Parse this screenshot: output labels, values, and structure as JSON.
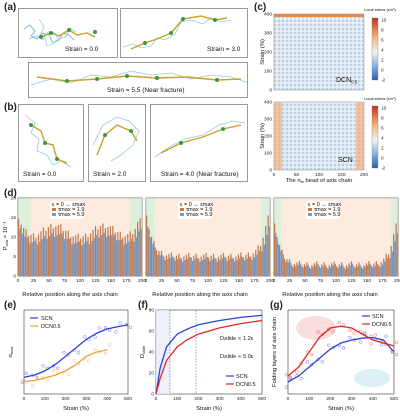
{
  "panel_labels": {
    "a": "(a)",
    "b": "(b)",
    "c": "(c)",
    "d": "(d)",
    "e": "(e)",
    "f": "(f)",
    "g": "(g)"
  },
  "panel_a": {
    "strains": [
      "Strain = 0.0",
      "Strain = 3.0",
      "Strain = 5.5 (Near fracture)"
    ]
  },
  "panel_b": {
    "strains": [
      "Strain = 0.0",
      "Strain = 2.0",
      "Strain = 4.0 (Near fracture)"
    ]
  },
  "panel_c": {
    "colorbar_title": "Local stress (ε/σ³)",
    "colorbar_ticks": [
      "10",
      "8",
      "6",
      "4",
      "2",
      "0",
      "-2"
    ],
    "top_label": "DCN",
    "top_label_sub": "0.5",
    "bottom_label": "SCN",
    "ylabel": "Strain (%)",
    "xlabel": "The n",
    "xlabel_sub": "th",
    "xlabel_tail": " bead of axis chain",
    "yticks": [
      "0",
      "100",
      "200",
      "300",
      "400"
    ],
    "xticks": [
      "0",
      "50",
      "100",
      "150",
      "200"
    ]
  },
  "panel_d": {
    "ylabel": "P",
    "ylabel_sub": "in/a",
    "ylabel_tail": " × 10⁻³",
    "xlabel": "Relative position along the axis chain",
    "yticks": [
      "0",
      "5",
      "10",
      "15",
      "20"
    ],
    "xticks": [
      "0",
      "25",
      "50",
      "75",
      "100",
      "125",
      "150",
      "175",
      "200"
    ],
    "subplots": [
      {
        "condition": "ε = 0 → εmax",
        "legend": [
          "τmax = 1.9",
          "τmax = 5.9"
        ]
      },
      {
        "condition": "ε = 0 → εmax",
        "legend": [
          "τmax = 1.9",
          "τmax = 5.9"
        ]
      },
      {
        "condition": "ε = 0 → εmax",
        "legend": [
          "τmax = 1.9",
          "τmax = 5.9"
        ]
      }
    ]
  },
  "panel_e": {
    "ylabel": "α",
    "ylabel_sub": "max",
    "xlabel": "Strain (%)",
    "legend": [
      "SCN",
      "DCN0.5"
    ],
    "colors": {
      "scn": "#2f3fd8",
      "dcn": "#f0a030"
    }
  },
  "panel_f": {
    "ylabel": "D",
    "ylabel_sub": "slide",
    "xlabel": "Strain (%)",
    "legend": [
      "SCN",
      "DCN0.5"
    ],
    "annot1": "Dᵢslide ∝ 1.2ε",
    "annot2": "Dᵢslide ∝ 5.0ε",
    "yticks": [
      "0",
      "20",
      "40",
      "60",
      "80"
    ],
    "colors": {
      "scn": "#2f3fd8",
      "dcn": "#e02525"
    }
  },
  "panel_g": {
    "ylabel": "Folding layers of axis chain",
    "xlabel": "Strain (%)",
    "legend": [
      "SCN",
      "DCN0.5"
    ],
    "colors": {
      "scn": "#2f3fd8",
      "dcn": "#e02525"
    }
  },
  "chart_data": [
    {
      "type": "bar",
      "panel": "d",
      "title": "",
      "xlabel": "Relative position along the axis chain",
      "ylabel": "P in/a × 10^-3",
      "ylim": [
        0,
        20
      ],
      "xlim": [
        0,
        200
      ],
      "series_names": [
        "τmax = 1.9",
        "τmax = 5.9"
      ],
      "subplots": [
        {
          "ends_high": 17,
          "mid": 9.5,
          "hump": 13
        },
        {
          "ends_high": 19,
          "mid": 5.2,
          "hump": 6
        },
        {
          "ends_high": 17,
          "mid": 3,
          "hump": 3.5
        }
      ]
    },
    {
      "type": "line",
      "panel": "e",
      "xlabel": "Strain (%)",
      "ylabel": "αmax",
      "xlim": [
        0,
        500
      ],
      "series": [
        {
          "name": "SCN",
          "x": [
            0,
            50,
            100,
            150,
            200,
            250,
            300,
            350,
            400,
            450,
            500
          ],
          "values": [
            0.4,
            0.45,
            0.55,
            0.7,
            0.9,
            1.1,
            1.3,
            1.45,
            1.55,
            1.6,
            1.65
          ]
        },
        {
          "name": "DCN0.5",
          "x": [
            0,
            50,
            100,
            150,
            200,
            250,
            300,
            350,
            400
          ],
          "values": [
            0.3,
            0.32,
            0.38,
            0.45,
            0.55,
            0.7,
            0.9,
            1.0,
            1.05
          ]
        }
      ]
    },
    {
      "type": "line",
      "panel": "f",
      "xlabel": "Strain (%)",
      "ylabel": "D slide",
      "ylim": [
        0,
        80
      ],
      "xlim": [
        0,
        500
      ],
      "series": [
        {
          "name": "SCN",
          "x": [
            0,
            20,
            50,
            100,
            150,
            200,
            300,
            400,
            500
          ],
          "values": [
            0,
            25,
            45,
            57,
            62,
            66,
            70,
            73,
            75
          ]
        },
        {
          "name": "DCN0.5",
          "x": [
            0,
            20,
            50,
            100,
            150,
            200,
            300,
            400,
            500
          ],
          "values": [
            0,
            15,
            32,
            45,
            52,
            57,
            63,
            67,
            70
          ]
        }
      ]
    },
    {
      "type": "line",
      "panel": "g",
      "xlabel": "Strain (%)",
      "ylabel": "Folding layers of axis chain",
      "xlim": [
        0,
        500
      ],
      "series": [
        {
          "name": "SCN",
          "x": [
            0,
            50,
            100,
            150,
            200,
            250,
            300,
            350,
            400,
            450,
            500
          ],
          "values": [
            2,
            3,
            4.5,
            6,
            7.5,
            8.5,
            9,
            9.3,
            9.4,
            9,
            7
          ]
        },
        {
          "name": "DCN0.5",
          "x": [
            0,
            50,
            100,
            150,
            200,
            250,
            300,
            350,
            400,
            450,
            500
          ],
          "values": [
            3,
            4.5,
            7,
            9.5,
            11,
            11.3,
            11,
            10,
            9,
            8.5,
            8
          ]
        }
      ]
    }
  ]
}
